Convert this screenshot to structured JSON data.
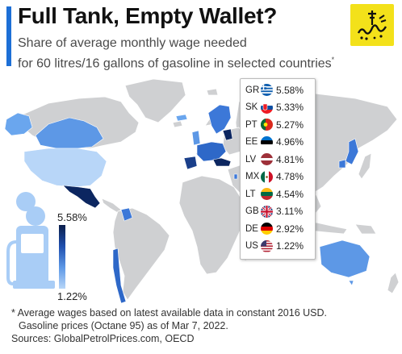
{
  "header": {
    "title": "Full Tank, Empty Wallet?",
    "subtitle_line1": "Share of average monthly wage needed",
    "subtitle_line2": "for 60 litres/16 gallons of gasoline in selected countries",
    "subtitle_mark": "*",
    "accent_color": "#1d6fd6"
  },
  "logo": {
    "icon": "publisher-logo-icon",
    "background": "#f3e11a"
  },
  "legend": {
    "items": [
      {
        "code": "GR",
        "value": "5.58%",
        "flag": "greece-flag-icon"
      },
      {
        "code": "SK",
        "value": "5.33%",
        "flag": "slovakia-flag-icon"
      },
      {
        "code": "PT",
        "value": "5.27%",
        "flag": "portugal-flag-icon"
      },
      {
        "code": "EE",
        "value": "4.96%",
        "flag": "estonia-flag-icon"
      },
      {
        "code": "LV",
        "value": "4.81%",
        "flag": "latvia-flag-icon"
      },
      {
        "code": "MX",
        "value": "4.78%",
        "flag": "mexico-flag-icon"
      },
      {
        "code": "LT",
        "value": "4.54%",
        "flag": "lithuania-flag-icon"
      },
      {
        "code": "GB",
        "value": "3.11%",
        "flag": "uk-flag-icon"
      },
      {
        "code": "DE",
        "value": "2.92%",
        "flag": "germany-flag-icon"
      },
      {
        "code": "US",
        "value": "1.22%",
        "flag": "us-flag-icon"
      }
    ]
  },
  "scale": {
    "max_label": "5.58%",
    "min_label": "1.22%",
    "color_high": "#0a1e4a",
    "color_low": "#b8d6f8",
    "icon": "gas-pump-icon"
  },
  "map_colors": {
    "land": "#cfd0d2",
    "selected_light": "#6aa6ee",
    "selected_mid": "#2e68c8",
    "selected_dark": "#0c2660"
  },
  "footnote": {
    "line1": "* Average wages based on latest available data in constant 2016 USD.",
    "line2": "Gasoline prices (Octane 95) as of Mar 7, 2022.",
    "line3": "Sources: GlobalPetrolPrices.com, OECD"
  }
}
